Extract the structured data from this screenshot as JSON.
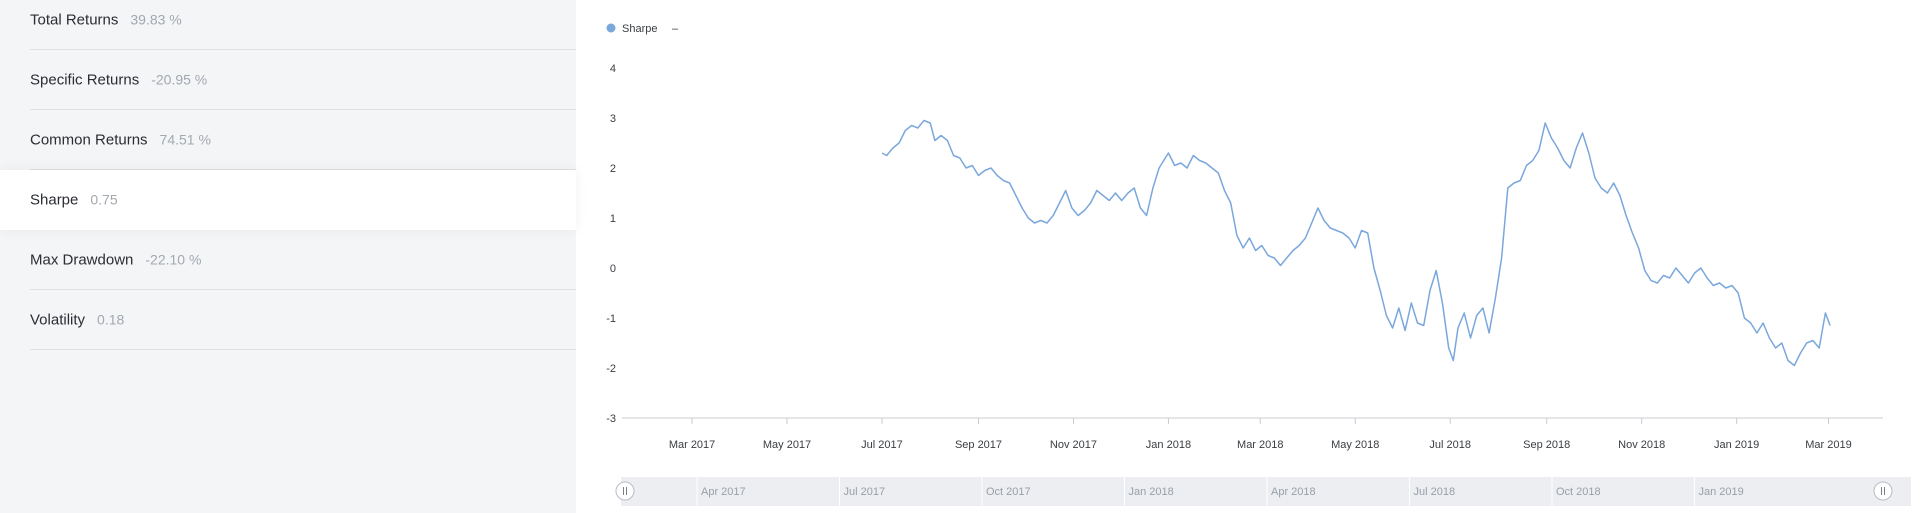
{
  "metrics": [
    {
      "label": "Total Returns",
      "value": "39.83 %"
    },
    {
      "label": "Specific Returns",
      "value": "-20.95 %"
    },
    {
      "label": "Common Returns",
      "value": "74.51 %"
    },
    {
      "label": "Sharpe",
      "value": "0.75"
    },
    {
      "label": "Max Drawdown",
      "value": "-22.10 %"
    },
    {
      "label": "Volatility",
      "value": "0.18"
    }
  ],
  "active_metric": "Sharpe",
  "legend": {
    "label": "Sharpe",
    "suffix": "–"
  },
  "colors": {
    "series": "#7aa7dc",
    "panel_bg": "#f4f5f7",
    "navigator_bg": "#eceef1"
  },
  "chart_data": {
    "type": "line",
    "title": "",
    "xlabel": "",
    "ylabel": "",
    "ylim": [
      -3,
      4
    ],
    "xlim": [
      "2017-01-15",
      "2019-04-05"
    ],
    "y_ticks": [
      "-3",
      "-2",
      "-1",
      "0",
      "1",
      "2",
      "3",
      "4"
    ],
    "x_ticks": [
      {
        "label": "Mar 2017",
        "date": "2017-03-01"
      },
      {
        "label": "May 2017",
        "date": "2017-05-01"
      },
      {
        "label": "Jul 2017",
        "date": "2017-07-01"
      },
      {
        "label": "Sep 2017",
        "date": "2017-09-01"
      },
      {
        "label": "Nov 2017",
        "date": "2017-11-01"
      },
      {
        "label": "Jan 2018",
        "date": "2018-01-01"
      },
      {
        "label": "Mar 2018",
        "date": "2018-03-01"
      },
      {
        "label": "May 2018",
        "date": "2018-05-01"
      },
      {
        "label": "Jul 2018",
        "date": "2018-07-01"
      },
      {
        "label": "Sep 2018",
        "date": "2018-09-01"
      },
      {
        "label": "Nov 2018",
        "date": "2018-11-01"
      },
      {
        "label": "Jan 2019",
        "date": "2019-01-01"
      },
      {
        "label": "Mar 2019",
        "date": "2019-03-01"
      }
    ],
    "grid": false,
    "legend_position": "top-left",
    "series": [
      {
        "name": "Sharpe",
        "points": [
          [
            "2017-07-01",
            2.3
          ],
          [
            "2017-07-04",
            2.25
          ],
          [
            "2017-07-08",
            2.4
          ],
          [
            "2017-07-12",
            2.5
          ],
          [
            "2017-07-16",
            2.75
          ],
          [
            "2017-07-20",
            2.85
          ],
          [
            "2017-07-24",
            2.8
          ],
          [
            "2017-07-28",
            2.95
          ],
          [
            "2017-08-01",
            2.9
          ],
          [
            "2017-08-04",
            2.55
          ],
          [
            "2017-08-08",
            2.65
          ],
          [
            "2017-08-12",
            2.55
          ],
          [
            "2017-08-16",
            2.25
          ],
          [
            "2017-08-20",
            2.2
          ],
          [
            "2017-08-24",
            2.0
          ],
          [
            "2017-08-28",
            2.05
          ],
          [
            "2017-09-01",
            1.85
          ],
          [
            "2017-09-05",
            1.95
          ],
          [
            "2017-09-09",
            2.0
          ],
          [
            "2017-09-13",
            1.85
          ],
          [
            "2017-09-17",
            1.75
          ],
          [
            "2017-09-21",
            1.7
          ],
          [
            "2017-09-25",
            1.45
          ],
          [
            "2017-09-29",
            1.2
          ],
          [
            "2017-10-03",
            1.0
          ],
          [
            "2017-10-07",
            0.9
          ],
          [
            "2017-10-11",
            0.95
          ],
          [
            "2017-10-15",
            0.9
          ],
          [
            "2017-10-19",
            1.05
          ],
          [
            "2017-10-23",
            1.3
          ],
          [
            "2017-10-27",
            1.55
          ],
          [
            "2017-10-31",
            1.2
          ],
          [
            "2017-11-04",
            1.05
          ],
          [
            "2017-11-08",
            1.15
          ],
          [
            "2017-11-12",
            1.3
          ],
          [
            "2017-11-16",
            1.55
          ],
          [
            "2017-11-20",
            1.45
          ],
          [
            "2017-11-24",
            1.35
          ],
          [
            "2017-11-28",
            1.5
          ],
          [
            "2017-12-02",
            1.35
          ],
          [
            "2017-12-06",
            1.5
          ],
          [
            "2017-12-10",
            1.6
          ],
          [
            "2017-12-14",
            1.2
          ],
          [
            "2017-12-18",
            1.05
          ],
          [
            "2017-12-22",
            1.6
          ],
          [
            "2017-12-26",
            2.0
          ],
          [
            "2018-01-01",
            2.3
          ],
          [
            "2018-01-05",
            2.05
          ],
          [
            "2018-01-09",
            2.1
          ],
          [
            "2018-01-13",
            2.0
          ],
          [
            "2018-01-17",
            2.25
          ],
          [
            "2018-01-21",
            2.15
          ],
          [
            "2018-01-25",
            2.1
          ],
          [
            "2018-01-29",
            2.0
          ],
          [
            "2018-02-02",
            1.9
          ],
          [
            "2018-02-06",
            1.55
          ],
          [
            "2018-02-10",
            1.3
          ],
          [
            "2018-02-14",
            0.65
          ],
          [
            "2018-02-18",
            0.4
          ],
          [
            "2018-02-22",
            0.6
          ],
          [
            "2018-02-26",
            0.35
          ],
          [
            "2018-03-02",
            0.45
          ],
          [
            "2018-03-06",
            0.25
          ],
          [
            "2018-03-10",
            0.2
          ],
          [
            "2018-03-14",
            0.05
          ],
          [
            "2018-03-18",
            0.2
          ],
          [
            "2018-03-22",
            0.35
          ],
          [
            "2018-03-26",
            0.45
          ],
          [
            "2018-03-30",
            0.6
          ],
          [
            "2018-04-03",
            0.9
          ],
          [
            "2018-04-07",
            1.2
          ],
          [
            "2018-04-11",
            0.95
          ],
          [
            "2018-04-15",
            0.8
          ],
          [
            "2018-04-19",
            0.75
          ],
          [
            "2018-04-23",
            0.7
          ],
          [
            "2018-04-27",
            0.6
          ],
          [
            "2018-05-01",
            0.4
          ],
          [
            "2018-05-05",
            0.75
          ],
          [
            "2018-05-09",
            0.7
          ],
          [
            "2018-05-13",
            0.0
          ],
          [
            "2018-05-17",
            -0.45
          ],
          [
            "2018-05-21",
            -0.95
          ],
          [
            "2018-05-25",
            -1.2
          ],
          [
            "2018-05-29",
            -0.8
          ],
          [
            "2018-06-02",
            -1.25
          ],
          [
            "2018-06-06",
            -0.7
          ],
          [
            "2018-06-10",
            -1.1
          ],
          [
            "2018-06-14",
            -1.15
          ],
          [
            "2018-06-18",
            -0.45
          ],
          [
            "2018-06-22",
            -0.05
          ],
          [
            "2018-06-26",
            -0.7
          ],
          [
            "2018-06-30",
            -1.6
          ],
          [
            "2018-07-03",
            -1.85
          ],
          [
            "2018-07-06",
            -1.2
          ],
          [
            "2018-07-10",
            -0.9
          ],
          [
            "2018-07-14",
            -1.4
          ],
          [
            "2018-07-18",
            -0.95
          ],
          [
            "2018-07-22",
            -0.8
          ],
          [
            "2018-07-26",
            -1.3
          ],
          [
            "2018-07-30",
            -0.6
          ],
          [
            "2018-08-03",
            0.2
          ],
          [
            "2018-08-07",
            1.6
          ],
          [
            "2018-08-11",
            1.7
          ],
          [
            "2018-08-15",
            1.75
          ],
          [
            "2018-08-19",
            2.05
          ],
          [
            "2018-08-23",
            2.15
          ],
          [
            "2018-08-27",
            2.35
          ],
          [
            "2018-08-31",
            2.9
          ],
          [
            "2018-09-04",
            2.6
          ],
          [
            "2018-09-08",
            2.4
          ],
          [
            "2018-09-12",
            2.15
          ],
          [
            "2018-09-16",
            2.0
          ],
          [
            "2018-09-20",
            2.4
          ],
          [
            "2018-09-24",
            2.7
          ],
          [
            "2018-09-28",
            2.3
          ],
          [
            "2018-10-02",
            1.8
          ],
          [
            "2018-10-06",
            1.6
          ],
          [
            "2018-10-10",
            1.5
          ],
          [
            "2018-10-14",
            1.7
          ],
          [
            "2018-10-18",
            1.45
          ],
          [
            "2018-10-22",
            1.05
          ],
          [
            "2018-10-26",
            0.7
          ],
          [
            "2018-10-30",
            0.4
          ],
          [
            "2018-11-03",
            -0.05
          ],
          [
            "2018-11-07",
            -0.25
          ],
          [
            "2018-11-11",
            -0.3
          ],
          [
            "2018-11-15",
            -0.15
          ],
          [
            "2018-11-19",
            -0.2
          ],
          [
            "2018-11-23",
            0.0
          ],
          [
            "2018-11-27",
            -0.15
          ],
          [
            "2018-12-01",
            -0.3
          ],
          [
            "2018-12-05",
            -0.1
          ],
          [
            "2018-12-09",
            0.0
          ],
          [
            "2018-12-13",
            -0.2
          ],
          [
            "2018-12-17",
            -0.35
          ],
          [
            "2018-12-21",
            -0.3
          ],
          [
            "2018-12-25",
            -0.4
          ],
          [
            "2018-12-29",
            -0.35
          ],
          [
            "2019-01-02",
            -0.5
          ],
          [
            "2019-01-06",
            -1.0
          ],
          [
            "2019-01-10",
            -1.1
          ],
          [
            "2019-01-14",
            -1.3
          ],
          [
            "2019-01-18",
            -1.1
          ],
          [
            "2019-01-22",
            -1.4
          ],
          [
            "2019-01-26",
            -1.6
          ],
          [
            "2019-01-30",
            -1.5
          ],
          [
            "2019-02-03",
            -1.85
          ],
          [
            "2019-02-07",
            -1.95
          ],
          [
            "2019-02-11",
            -1.7
          ],
          [
            "2019-02-15",
            -1.5
          ],
          [
            "2019-02-19",
            -1.45
          ],
          [
            "2019-02-23",
            -1.6
          ],
          [
            "2019-02-27",
            -0.9
          ],
          [
            "2019-03-02",
            -1.15
          ]
        ]
      }
    ]
  },
  "navigator": {
    "labels": [
      "Apr 2017",
      "Jul 2017",
      "Oct 2017",
      "Jan 2018",
      "Apr 2018",
      "Jul 2018",
      "Oct 2018",
      "Jan 2019"
    ]
  }
}
